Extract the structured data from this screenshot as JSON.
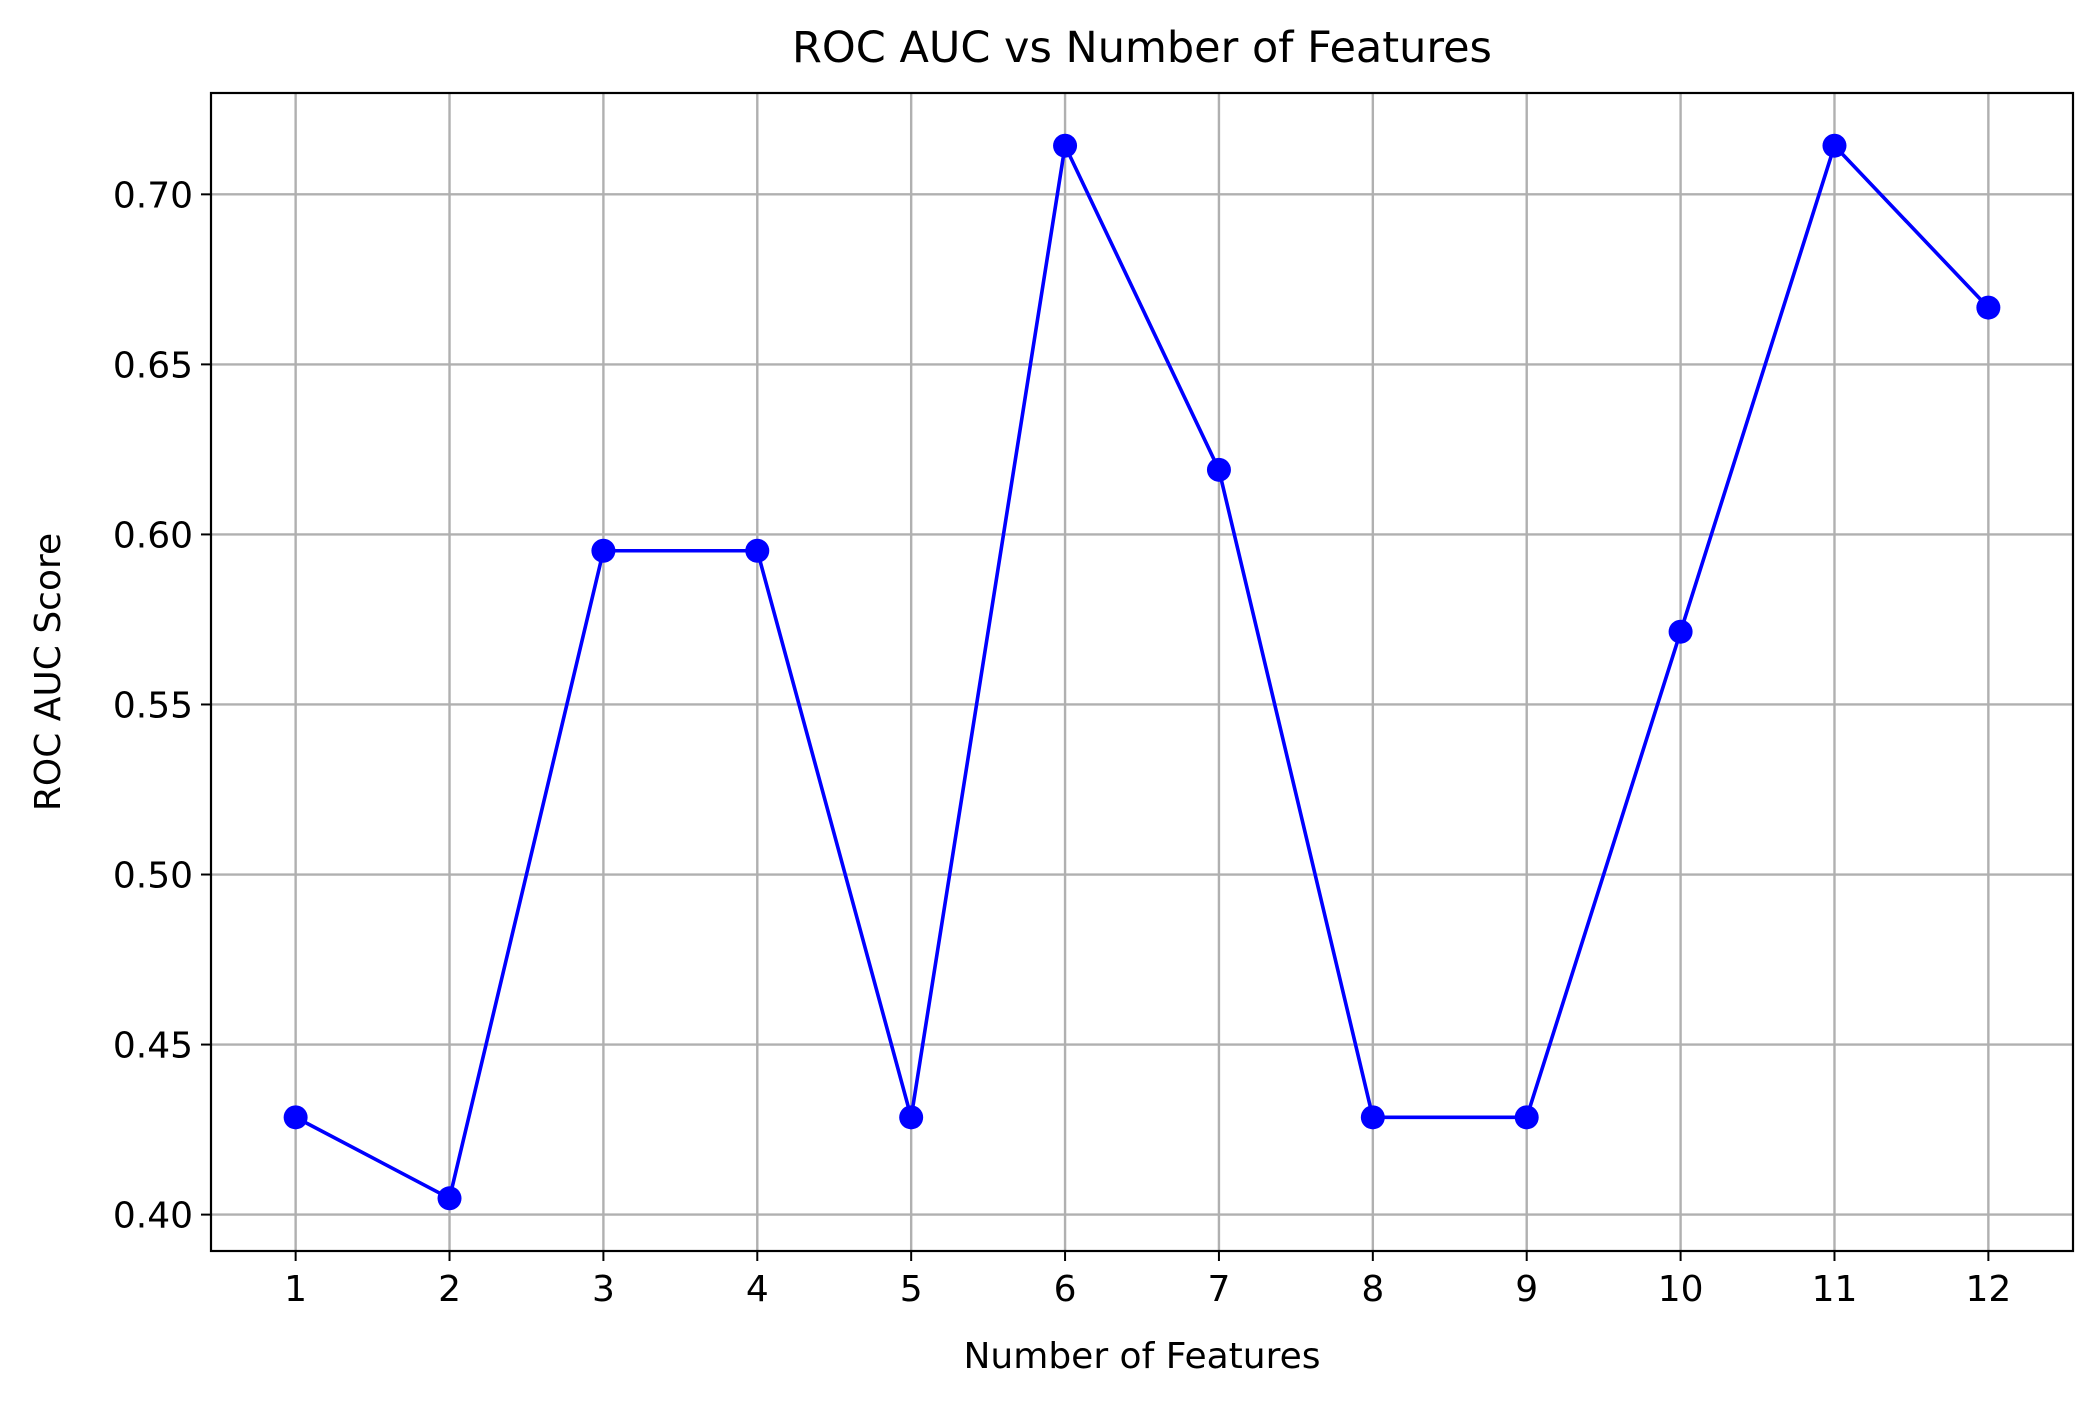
{
  "chart_data": {
    "type": "line",
    "title": "ROC AUC vs Number of Features",
    "xlabel": "Number of Features",
    "ylabel": "ROC AUC Score",
    "x": [
      1,
      2,
      3,
      4,
      5,
      6,
      7,
      8,
      9,
      10,
      11,
      12
    ],
    "x_tick_labels": [
      "1",
      "2",
      "3",
      "4",
      "5",
      "6",
      "7",
      "8",
      "9",
      "10",
      "11",
      "12"
    ],
    "series": [
      {
        "values": [
          0.4286,
          0.4048,
          0.5952,
          0.5952,
          0.4286,
          0.7143,
          0.619,
          0.4286,
          0.4286,
          0.5714,
          0.7143,
          0.6667
        ],
        "color": "#0000ff",
        "marker": "circle"
      }
    ],
    "y_ticks": [
      0.4,
      0.45,
      0.5,
      0.55,
      0.6,
      0.65,
      0.7
    ],
    "y_tick_labels": [
      "0.40",
      "0.45",
      "0.50",
      "0.55",
      "0.60",
      "0.65",
      "0.70"
    ],
    "xlim": [
      0.45,
      12.55
    ],
    "ylim": [
      0.3893,
      0.7298
    ],
    "grid": true,
    "legend": "none"
  }
}
